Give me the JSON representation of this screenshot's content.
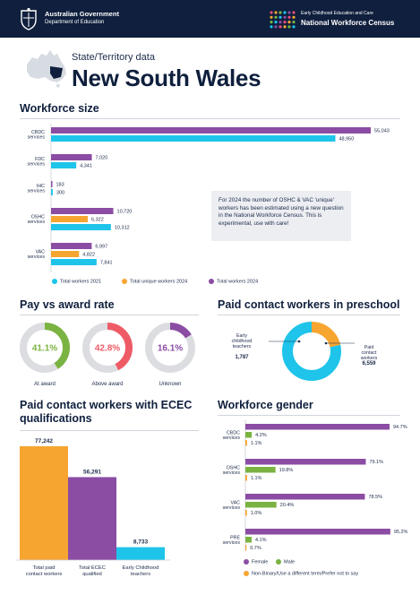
{
  "header": {
    "gov_title": "Australian Government",
    "gov_department": "Department of Education",
    "census_small": "Early Childhood Education and Care",
    "census_big": "National Workforce Census"
  },
  "page": {
    "subtitle": "State/Territory data",
    "title": "New South Wales"
  },
  "colors": {
    "purple": "#8b4ca3",
    "cyan": "#1ec4ea",
    "orange": "#f7a531",
    "green": "#7bb342",
    "red": "#ee5b66",
    "navy": "#0f1f3d"
  },
  "sections": {
    "workforce_size": "Workforce size",
    "pay": "Pay vs award rate",
    "preschool": "Paid contact workers in preschool",
    "qualifications": "Paid contact workers with ECEC qualifications",
    "gender": "Workforce gender"
  },
  "note": "For 2024 the number of OSHC & VAC 'unique' workers has been estimated using a new question in the National Workforce Census. This is experimental, use with care!",
  "chart_data": [
    {
      "type": "bar",
      "orientation": "horizontal",
      "title": "Workforce size",
      "categories": [
        "CBDC services",
        "FDC services",
        "IHC services",
        "OSHC services",
        "VAC services",
        "PRE services"
      ],
      "series": [
        {
          "name": "Total workers 2024",
          "color": "#8b4ca3",
          "values": [
            55043,
            7020,
            183,
            10720,
            6997,
            8289
          ],
          "labels": [
            "55,043",
            "7,020",
            "183",
            "10,720",
            "6,997",
            "8,289"
          ]
        },
        {
          "name": "Total unique workers 2024",
          "color": "#f7a531",
          "values": [
            null,
            null,
            null,
            6322,
            4822,
            null
          ],
          "labels": [
            "",
            "",
            "",
            "6,322",
            "4,822",
            ""
          ]
        },
        {
          "name": "Total workers 2021",
          "color": "#1ec4ea",
          "values": [
            48950,
            4341,
            300,
            10312,
            7841,
            7736
          ],
          "labels": [
            "48,950",
            "4,341",
            "300",
            "10,312",
            "7,841",
            "7,736"
          ]
        }
      ],
      "legend": [
        "Total workers 2021",
        "Total unique workers 2024",
        "Total workers 2024"
      ]
    },
    {
      "type": "pie",
      "variant": "donut",
      "title": "Pay vs award rate",
      "items": [
        {
          "label": "At award",
          "value": 41.1,
          "text": "41.1%",
          "color": "#7bb342"
        },
        {
          "label": "Above award",
          "value": 42.8,
          "text": "42.8%",
          "color": "#ee5b66"
        },
        {
          "label": "Unknown",
          "value": 16.1,
          "text": "16.1%",
          "color": "#8b4ca3"
        }
      ]
    },
    {
      "type": "pie",
      "variant": "donut",
      "title": "Paid contact workers in preschool",
      "slices": [
        {
          "label": "Early childhood teachers",
          "value": 1787,
          "text": "1,787",
          "color": "#f7a531"
        },
        {
          "label": "Paid contact workers",
          "value": 6559,
          "text": "6,559",
          "color": "#1ec4ea"
        }
      ]
    },
    {
      "type": "bar",
      "title": "Paid contact workers with ECEC qualifications",
      "categories": [
        "Total paid contact workers",
        "Total ECEC qualified",
        "Early Childhood teachers"
      ],
      "values": [
        77242,
        56291,
        8733
      ],
      "labels": [
        "77,242",
        "56,291",
        "8,733"
      ],
      "colors": [
        "#f7a531",
        "#8b4ca3",
        "#1ec4ea"
      ]
    },
    {
      "type": "bar",
      "orientation": "horizontal",
      "title": "Workforce gender",
      "categories": [
        "CBDC services",
        "OSHC services",
        "VAC services",
        "PRE services"
      ],
      "series": [
        {
          "name": "Female",
          "color": "#8b4ca3",
          "values": [
            94.7,
            79.1,
            78.5,
            95.2
          ],
          "labels": [
            "94.7%",
            "79.1%",
            "78.5%",
            "95.2%"
          ]
        },
        {
          "name": "Male",
          "color": "#7bb342",
          "values": [
            4.2,
            19.8,
            20.4,
            4.1
          ],
          "labels": [
            "4.2%",
            "19.8%",
            "20.4%",
            "4.1%"
          ]
        },
        {
          "name": "Non-Binary/Use a different term/Prefer not to say",
          "color": "#f7a531",
          "values": [
            1.1,
            1.1,
            1.0,
            0.7
          ],
          "labels": [
            "1.1%",
            "1.1%",
            "1.0%",
            "0.7%"
          ]
        }
      ],
      "legend": [
        "Female",
        "Male",
        "Non-Binary/Use a different term/Prefer not to say"
      ]
    }
  ]
}
